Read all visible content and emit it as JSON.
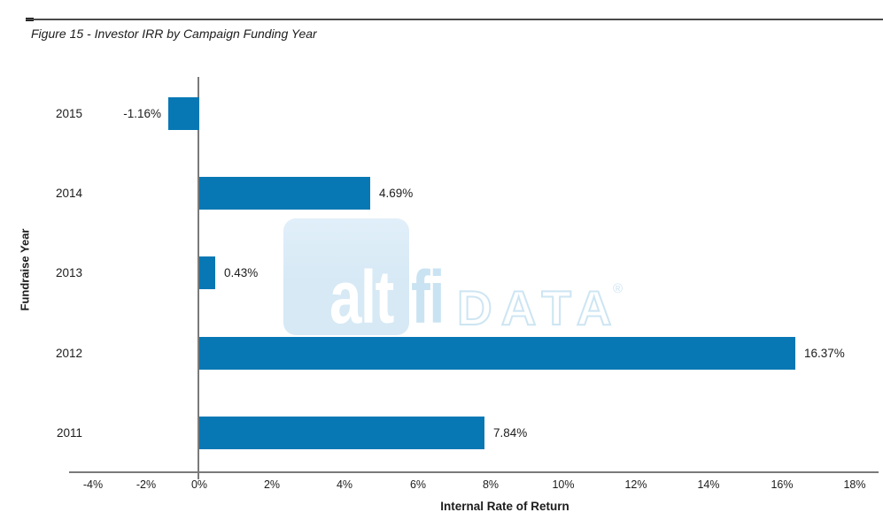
{
  "figure": {
    "title": "Figure 15 - Investor IRR by Campaign Funding Year"
  },
  "watermark": {
    "alt": "alt",
    "fi": "fi",
    "data": "DATA",
    "registered": "®"
  },
  "chart_data": {
    "type": "bar",
    "orientation": "horizontal",
    "title": "Figure 15 - Investor IRR by Campaign Funding Year",
    "categories": [
      "2015",
      "2014",
      "2013",
      "2012",
      "2011"
    ],
    "values": [
      -1.16,
      4.69,
      0.43,
      16.37,
      7.84
    ],
    "value_labels": [
      "-1.16%",
      "4.69%",
      "0.43%",
      "16.37%",
      "7.84%"
    ],
    "xlabel": "Internal Rate of Return",
    "ylabel": "Fundraise Year",
    "xlim": [
      -4,
      18
    ],
    "xticks": [
      -4,
      -2,
      0,
      2,
      4,
      6,
      8,
      10,
      12,
      14,
      16,
      18
    ],
    "xtick_labels": [
      "-4%",
      "-2%",
      "0%",
      "2%",
      "4%",
      "6%",
      "8%",
      "10%",
      "12%",
      "14%",
      "16%",
      "18%"
    ],
    "grid": false,
    "legend": false,
    "bar_color": "#0878b4",
    "axis_color": "#7a7a7a",
    "text_color": "#1c1c1c"
  }
}
